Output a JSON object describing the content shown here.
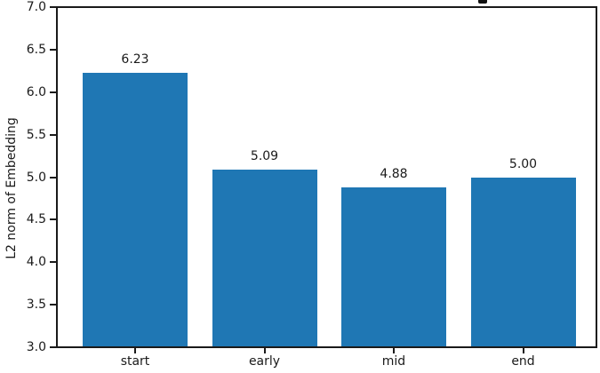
{
  "figure": {
    "background_color": "#ffffff",
    "axis_color": "#1a1a1a"
  },
  "chart_data": {
    "type": "bar",
    "categories": [
      "start",
      "early",
      "mid",
      "end"
    ],
    "values": [
      6.23,
      5.09,
      4.88,
      5.0
    ],
    "bar_labels": [
      "6.23",
      "5.09",
      "4.88",
      "5.00"
    ],
    "xlabel": "",
    "ylabel": "L2 norm of Embedding",
    "ylim": [
      3.0,
      7.0
    ],
    "yticks": [
      7.0,
      6.5,
      6.0,
      5.5,
      5.0,
      4.5,
      4.0,
      3.5,
      3.0
    ],
    "ytick_labels": [
      "7.0",
      "6.5",
      "6.0",
      "5.5",
      "5.0",
      "4.5",
      "4.0",
      "3.5",
      "3.0"
    ],
    "bar_color": "#1f77b4",
    "grid": false,
    "legend": null
  }
}
